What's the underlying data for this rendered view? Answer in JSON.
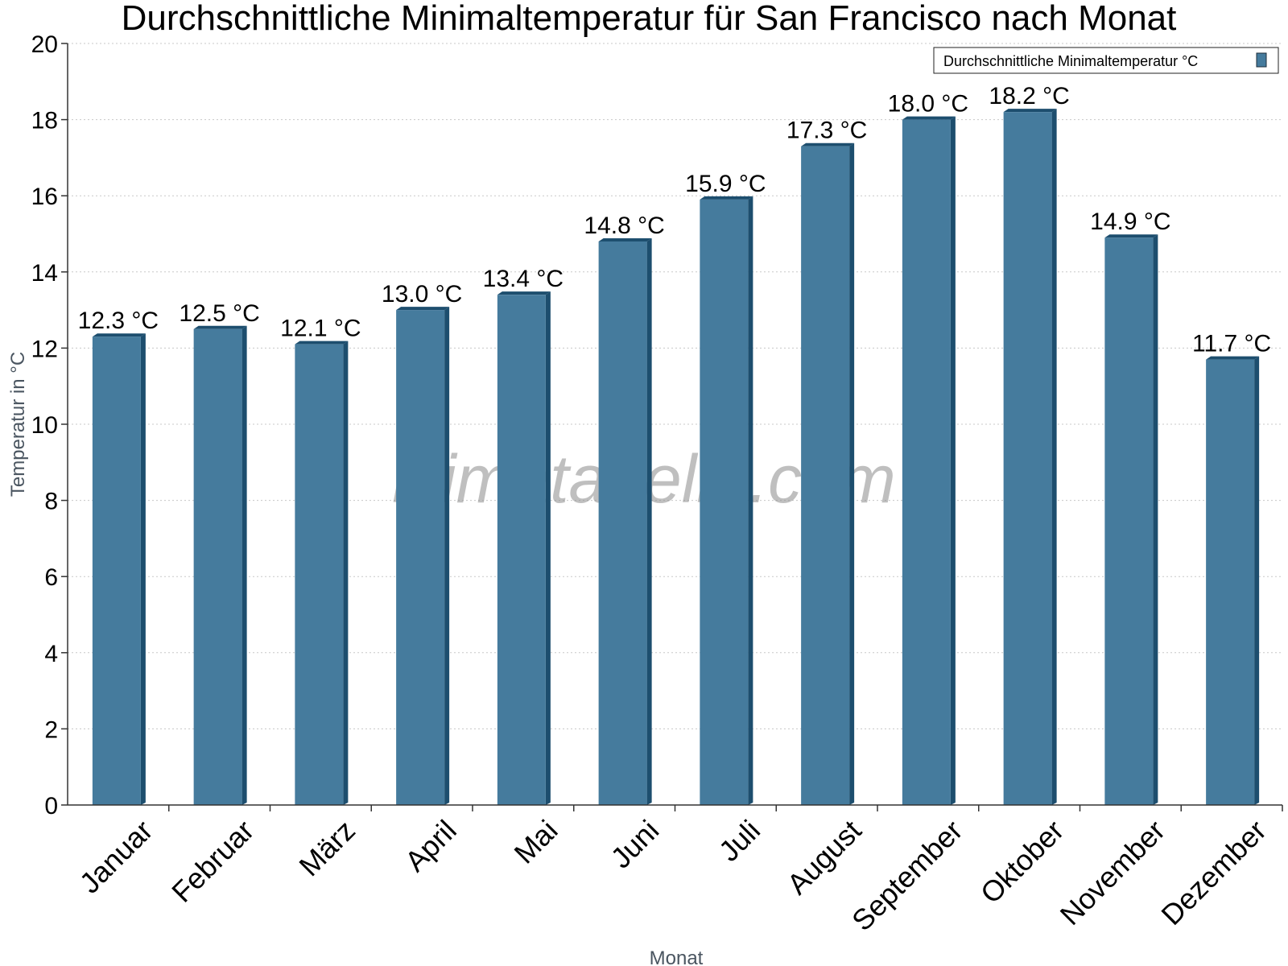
{
  "chart_data": {
    "type": "bar",
    "title": "Durchschnittliche Minimaltemperatur für San Francisco nach Monat",
    "xlabel": "Monat",
    "ylabel": "Temperatur in °C",
    "ylim": [
      0,
      20
    ],
    "yticks": [
      0,
      2,
      4,
      6,
      8,
      10,
      12,
      14,
      16,
      18,
      20
    ],
    "grid": true,
    "legend_position": "top-right",
    "categories": [
      "Januar",
      "Februar",
      "März",
      "April",
      "Mai",
      "Juni",
      "Juli",
      "August",
      "September",
      "Oktober",
      "November",
      "Dezember"
    ],
    "series": [
      {
        "name": "Durchschnittliche Minimaltemperatur °C",
        "values": [
          12.3,
          12.5,
          12.1,
          13.0,
          13.4,
          14.8,
          15.9,
          17.3,
          18.0,
          18.2,
          14.9,
          11.7
        ],
        "labels": [
          "12.3 °C",
          "12.5 °C",
          "12.1 °C",
          "13.0 °C",
          "13.4 °C",
          "14.8 °C",
          "15.9 °C",
          "17.3 °C",
          "18.0 °C",
          "18.2 °C",
          "14.9 °C",
          "11.7 °C"
        ],
        "color": "#457b9d",
        "edge_color": "#1d4e6e"
      }
    ],
    "watermark": "klimatabelle.com"
  }
}
